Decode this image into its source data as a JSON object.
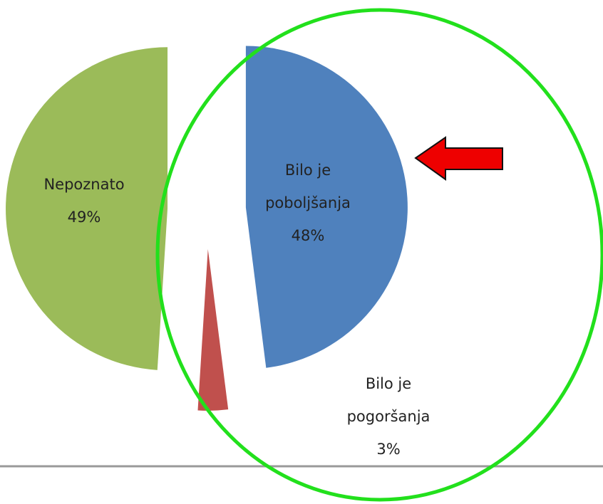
{
  "chart_data": {
    "type": "pie",
    "categories": [
      "Bilo je poboljšanja",
      "Bilo je pogoršanja",
      "Nepoznato"
    ],
    "values": [
      48,
      3,
      49
    ],
    "value_labels": [
      "48%",
      "3%",
      "49%"
    ],
    "colors": [
      "#4f81bd",
      "#c0504d",
      "#9bbb59"
    ],
    "exploded": true
  }
}
